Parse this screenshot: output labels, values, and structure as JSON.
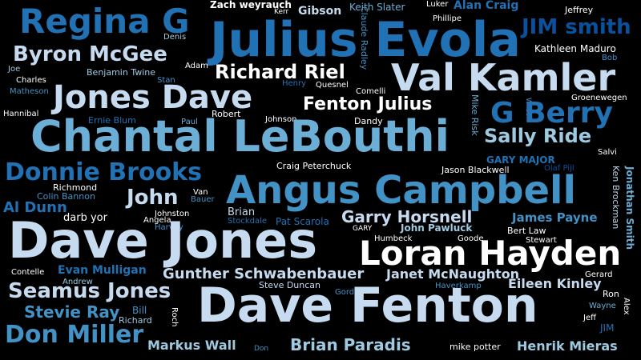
{
  "palette": {
    "background": "#000000",
    "white": "#ffffff",
    "pale_blue": "#c6dbef",
    "light_blue": "#9ecae1",
    "sky_blue": "#6baed6",
    "mid_blue": "#4292c6",
    "blue": "#2171b5",
    "dark_blue": "#08519c",
    "navy": "#08306b"
  },
  "words": [
    "Regina G",
    "Julius Evola",
    "Zach weyrauch",
    "Kerr",
    "Gibson",
    "Keith Slater",
    "Luker",
    "Alan Craig",
    "Jeffrey",
    "Phillipe",
    "JIM smith",
    "Denis",
    "Claude Radley",
    "Byron McGee",
    "Kathleen Maduro",
    "Bob",
    "Adam",
    "Joe",
    "Benjamin Twine",
    "Richard Riel",
    "Val Kamler",
    "Charles",
    "Stan",
    "Henry",
    "Quesnel",
    "Matheson",
    "Jones Dave",
    "Comelli",
    "Groenewegen",
    "Fenton Julius",
    "Mike Risk",
    "Wilson",
    "G Berry",
    "Hannibal",
    "Robert",
    "Johnson",
    "Dandy",
    "Ernie Blum",
    "Paul",
    "Chantal LeBouthi",
    "Sally Ride",
    "Salvi",
    "GARY MAJOR",
    "Olaf Pijl",
    "Craig Peterchuck",
    "Jason Blackwell",
    "Donnie Brooks",
    "Jonathan Smith",
    "Ken Brockman",
    "Richmond",
    "Angus Campbell",
    "John",
    "Van",
    "Colin Bannon",
    "Bauer",
    "Al Dunn",
    "Brian",
    "Stockdale",
    "Pat Scarola",
    "Garry Horsnell",
    "darb yor",
    "Johnston",
    "Angela",
    "James Payne",
    "Harvey",
    "GARY",
    "John Pawluck",
    "Bert Law",
    "Dave Jones",
    "Humbeck",
    "Goode",
    "Stewart",
    "Loran Hayden",
    "Contelle",
    "Evan Mulligan",
    "Gunther Schwabenbauer",
    "Janet McNaughton",
    "Gerard",
    "Andrew",
    "Seamus Jones",
    "Steve Duncan",
    "Haverkamp",
    "Eileen Kinley",
    "Gordon",
    "Ron",
    "Dave Fenton",
    "Stevie Ray",
    "Bill",
    "Roch",
    "Wayne",
    "Alex",
    "Richard",
    "Jeff",
    "Don Miller",
    "JIM",
    "Markus Wall",
    "Don",
    "Brian Paradis",
    "mike potter",
    "Henrik Mieras"
  ]
}
